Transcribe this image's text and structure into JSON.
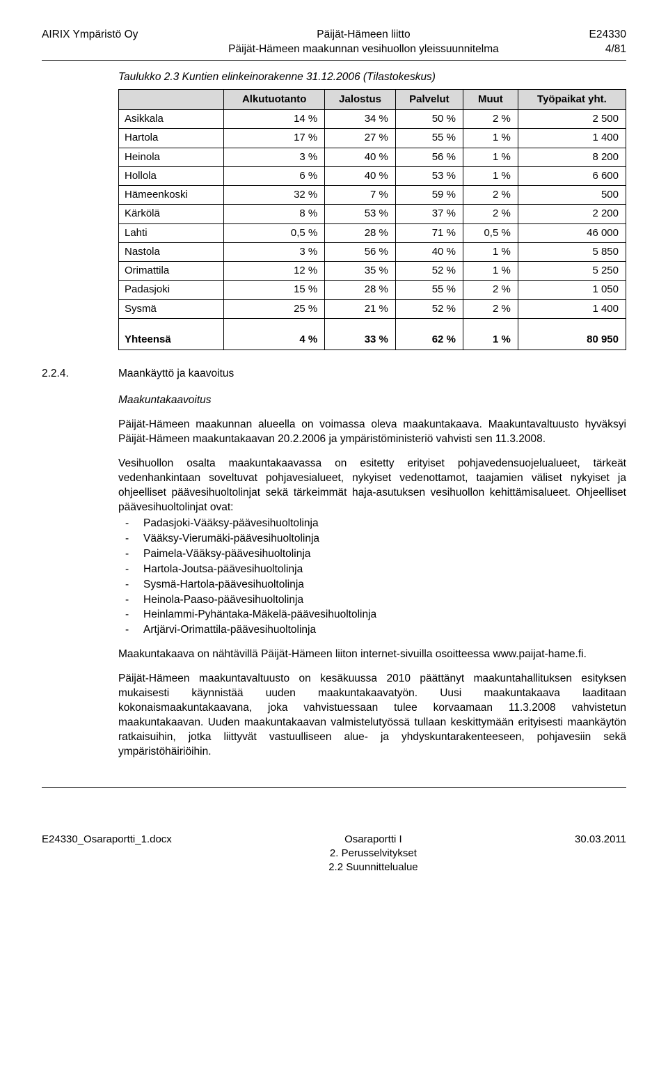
{
  "header": {
    "left": "AIRIX Ympäristö Oy",
    "center_top": "Päijät-Hämeen liitto",
    "center_bottom": "Päijät-Hämeen maakunnan vesihuollon yleissuunnitelma",
    "right_top": "E24330",
    "right_bottom": "4/81"
  },
  "table_caption": "Taulukko 2.3 Kuntien elinkeinorakenne 31.12.2006 (Tilastokeskus)",
  "table": {
    "headers": [
      "",
      "Alkutuotanto",
      "Jalostus",
      "Palvelut",
      "Muut",
      "Työpaikat yht."
    ],
    "rows": [
      [
        "Asikkala",
        "14 %",
        "34 %",
        "50 %",
        "2 %",
        "2 500"
      ],
      [
        "Hartola",
        "17 %",
        "27 %",
        "55 %",
        "1 %",
        "1 400"
      ],
      [
        "Heinola",
        "3 %",
        "40 %",
        "56 %",
        "1 %",
        "8 200"
      ],
      [
        "Hollola",
        "6 %",
        "40 %",
        "53 %",
        "1 %",
        "6 600"
      ],
      [
        "Hämeenkoski",
        "32 %",
        "7 %",
        "59 %",
        "2 %",
        "500"
      ],
      [
        "Kärkölä",
        "8 %",
        "53 %",
        "37 %",
        "2 %",
        "2 200"
      ],
      [
        "Lahti",
        "0,5 %",
        "28 %",
        "71 %",
        "0,5 %",
        "46 000"
      ],
      [
        "Nastola",
        "3 %",
        "56 %",
        "40 %",
        "1 %",
        "5 850"
      ],
      [
        "Orimattila",
        "12 %",
        "35 %",
        "52 %",
        "1 %",
        "5 250"
      ],
      [
        "Padasjoki",
        "15 %",
        "28 %",
        "55 %",
        "2 %",
        "1 050"
      ],
      [
        "Sysmä",
        "25 %",
        "21 %",
        "52 %",
        "2 %",
        "1 400"
      ]
    ],
    "total": [
      "Yhteensä",
      "4 %",
      "33 %",
      "62 %",
      "1 %",
      "80 950"
    ]
  },
  "section": {
    "num": "2.2.4.",
    "title": "Maankäyttö ja kaavoitus",
    "subhead": "Maakuntakaavoitus",
    "para1": "Päijät-Hämeen maakunnan alueella on voimassa oleva maakuntakaava. Maakuntavaltuusto hyväksyi Päijät-Hämeen maakuntakaavan 20.2.2006 ja ympäristöministeriö vahvisti sen 11.3.2008.",
    "para2": "Vesihuollon osalta maakuntakaavassa on esitetty erityiset pohjavedensuojelualueet, tärkeät vedenhankintaan soveltuvat pohjavesialueet, nykyiset vedenottamot, taajamien väliset nykyiset ja ohjeelliset päävesihuoltolinjat sekä tärkeimmät haja-asutuksen vesihuollon kehittämisalueet. Ohjeelliset päävesihuoltolinjat ovat:",
    "list": [
      "Padasjoki-Vääksy-päävesihuoltolinja",
      "Vääksy-Vierumäki-päävesihuoltolinja",
      "Paimela-Vääksy-päävesihuoltolinja",
      "Hartola-Joutsa-päävesihuoltolinja",
      "Sysmä-Hartola-päävesihuoltolinja",
      "Heinola-Paaso-päävesihuoltolinja",
      "Heinlammi-Pyhäntaka-Mäkelä-päävesihuoltolinja",
      "Artjärvi-Orimattila-päävesihuoltolinja"
    ],
    "para3": "Maakuntakaava on nähtävillä Päijät-Hämeen liiton internet-sivuilla osoitteessa www.paijat-hame.fi.",
    "para4": "Päijät-Hämeen maakuntavaltuusto on kesäkuussa 2010 päättänyt maakuntahallituksen esityksen mukaisesti käynnistää uuden maakuntakaavatyön. Uusi maakuntakaava laaditaan kokonaismaakuntakaavana, joka vahvistuessaan tulee korvaamaan 11.3.2008 vahvistetun maakuntakaavan. Uuden maakuntakaavan valmistelutyössä tullaan keskittymään erityisesti maankäytön ratkaisuihin, jotka liittyvät vastuulliseen alue- ja yhdyskuntarakenteeseen, pohjavesiin sekä ympäristöhäiriöihin."
  },
  "footer": {
    "left": "E24330_Osaraportti_1.docx",
    "center_top": "Osaraportti I",
    "center_mid": "2. Perusselvitykset",
    "center_bot": "2.2 Suunnittelualue",
    "right": "30.03.2011"
  }
}
